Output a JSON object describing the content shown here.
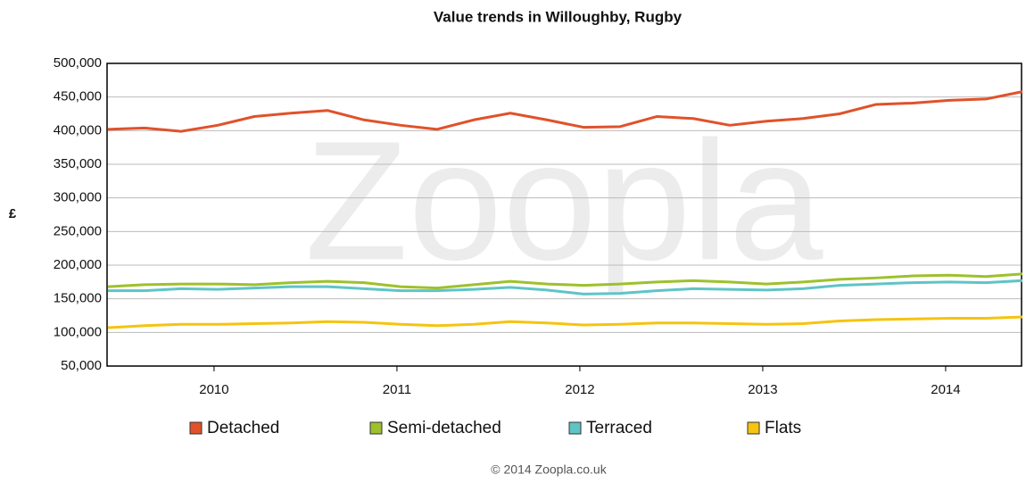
{
  "chart_data": {
    "type": "line",
    "title": "Value trends in Willoughby, Rugby",
    "y_label": "£",
    "watermark": "Zoopla",
    "footer": "© 2014 Zoopla.co.uk",
    "x": [
      2009.42,
      2009.62,
      2009.82,
      2010.02,
      2010.22,
      2010.42,
      2010.62,
      2010.82,
      2011.02,
      2011.22,
      2011.42,
      2011.62,
      2011.82,
      2012.02,
      2012.22,
      2012.42,
      2012.62,
      2012.82,
      2013.02,
      2013.22,
      2013.42,
      2013.62,
      2013.82,
      2014.02,
      2014.22,
      2014.42
    ],
    "series": [
      {
        "name": "Detached",
        "color": "#e0522a",
        "values": [
          402000,
          404000,
          399000,
          408000,
          421000,
          426000,
          430000,
          416000,
          408000,
          402000,
          416000,
          426000,
          416000,
          405000,
          406000,
          421000,
          418000,
          408000,
          414000,
          418000,
          425000,
          439000,
          441000,
          445000,
          447000,
          458000
        ]
      },
      {
        "name": "Semi-detached",
        "color": "#9dc12c",
        "values": [
          168000,
          171000,
          172000,
          172000,
          171000,
          174000,
          176000,
          174000,
          168000,
          166000,
          171000,
          176000,
          172000,
          170000,
          172000,
          175000,
          177000,
          175000,
          172000,
          175000,
          179000,
          181000,
          184000,
          185000,
          183000,
          187000
        ]
      },
      {
        "name": "Terraced",
        "color": "#5fc4c6",
        "values": [
          162000,
          162000,
          165000,
          164000,
          166000,
          168000,
          168000,
          165000,
          162000,
          162000,
          164000,
          167000,
          163000,
          157000,
          158000,
          162000,
          165000,
          164000,
          163000,
          165000,
          170000,
          172000,
          174000,
          175000,
          174000,
          177000
        ]
      },
      {
        "name": "Flats",
        "color": "#f5c40f",
        "values": [
          107000,
          110000,
          112000,
          112000,
          113000,
          114000,
          116000,
          115000,
          112000,
          110000,
          112000,
          116000,
          114000,
          111000,
          112000,
          114000,
          114000,
          113000,
          112000,
          113000,
          117000,
          119000,
          120000,
          121000,
          121000,
          123000
        ]
      }
    ],
    "xlim": [
      2009.415,
      2014.415
    ],
    "xticks": [
      2010,
      2011,
      2012,
      2013,
      2014
    ],
    "ylim": [
      50000,
      500000
    ],
    "yticks": [
      {
        "value": 50000,
        "label": "50,000"
      },
      {
        "value": 100000,
        "label": "100,000"
      },
      {
        "value": 150000,
        "label": "150,000"
      },
      {
        "value": 200000,
        "label": "200,000"
      },
      {
        "value": 250000,
        "label": "250,000"
      },
      {
        "value": 300000,
        "label": "300,000"
      },
      {
        "value": 350000,
        "label": "350,000"
      },
      {
        "value": 400000,
        "label": "400,000"
      },
      {
        "value": 450000,
        "label": "450,000"
      },
      {
        "value": 500000,
        "label": "500,000"
      }
    ],
    "grid": true,
    "legend": "bottom"
  }
}
